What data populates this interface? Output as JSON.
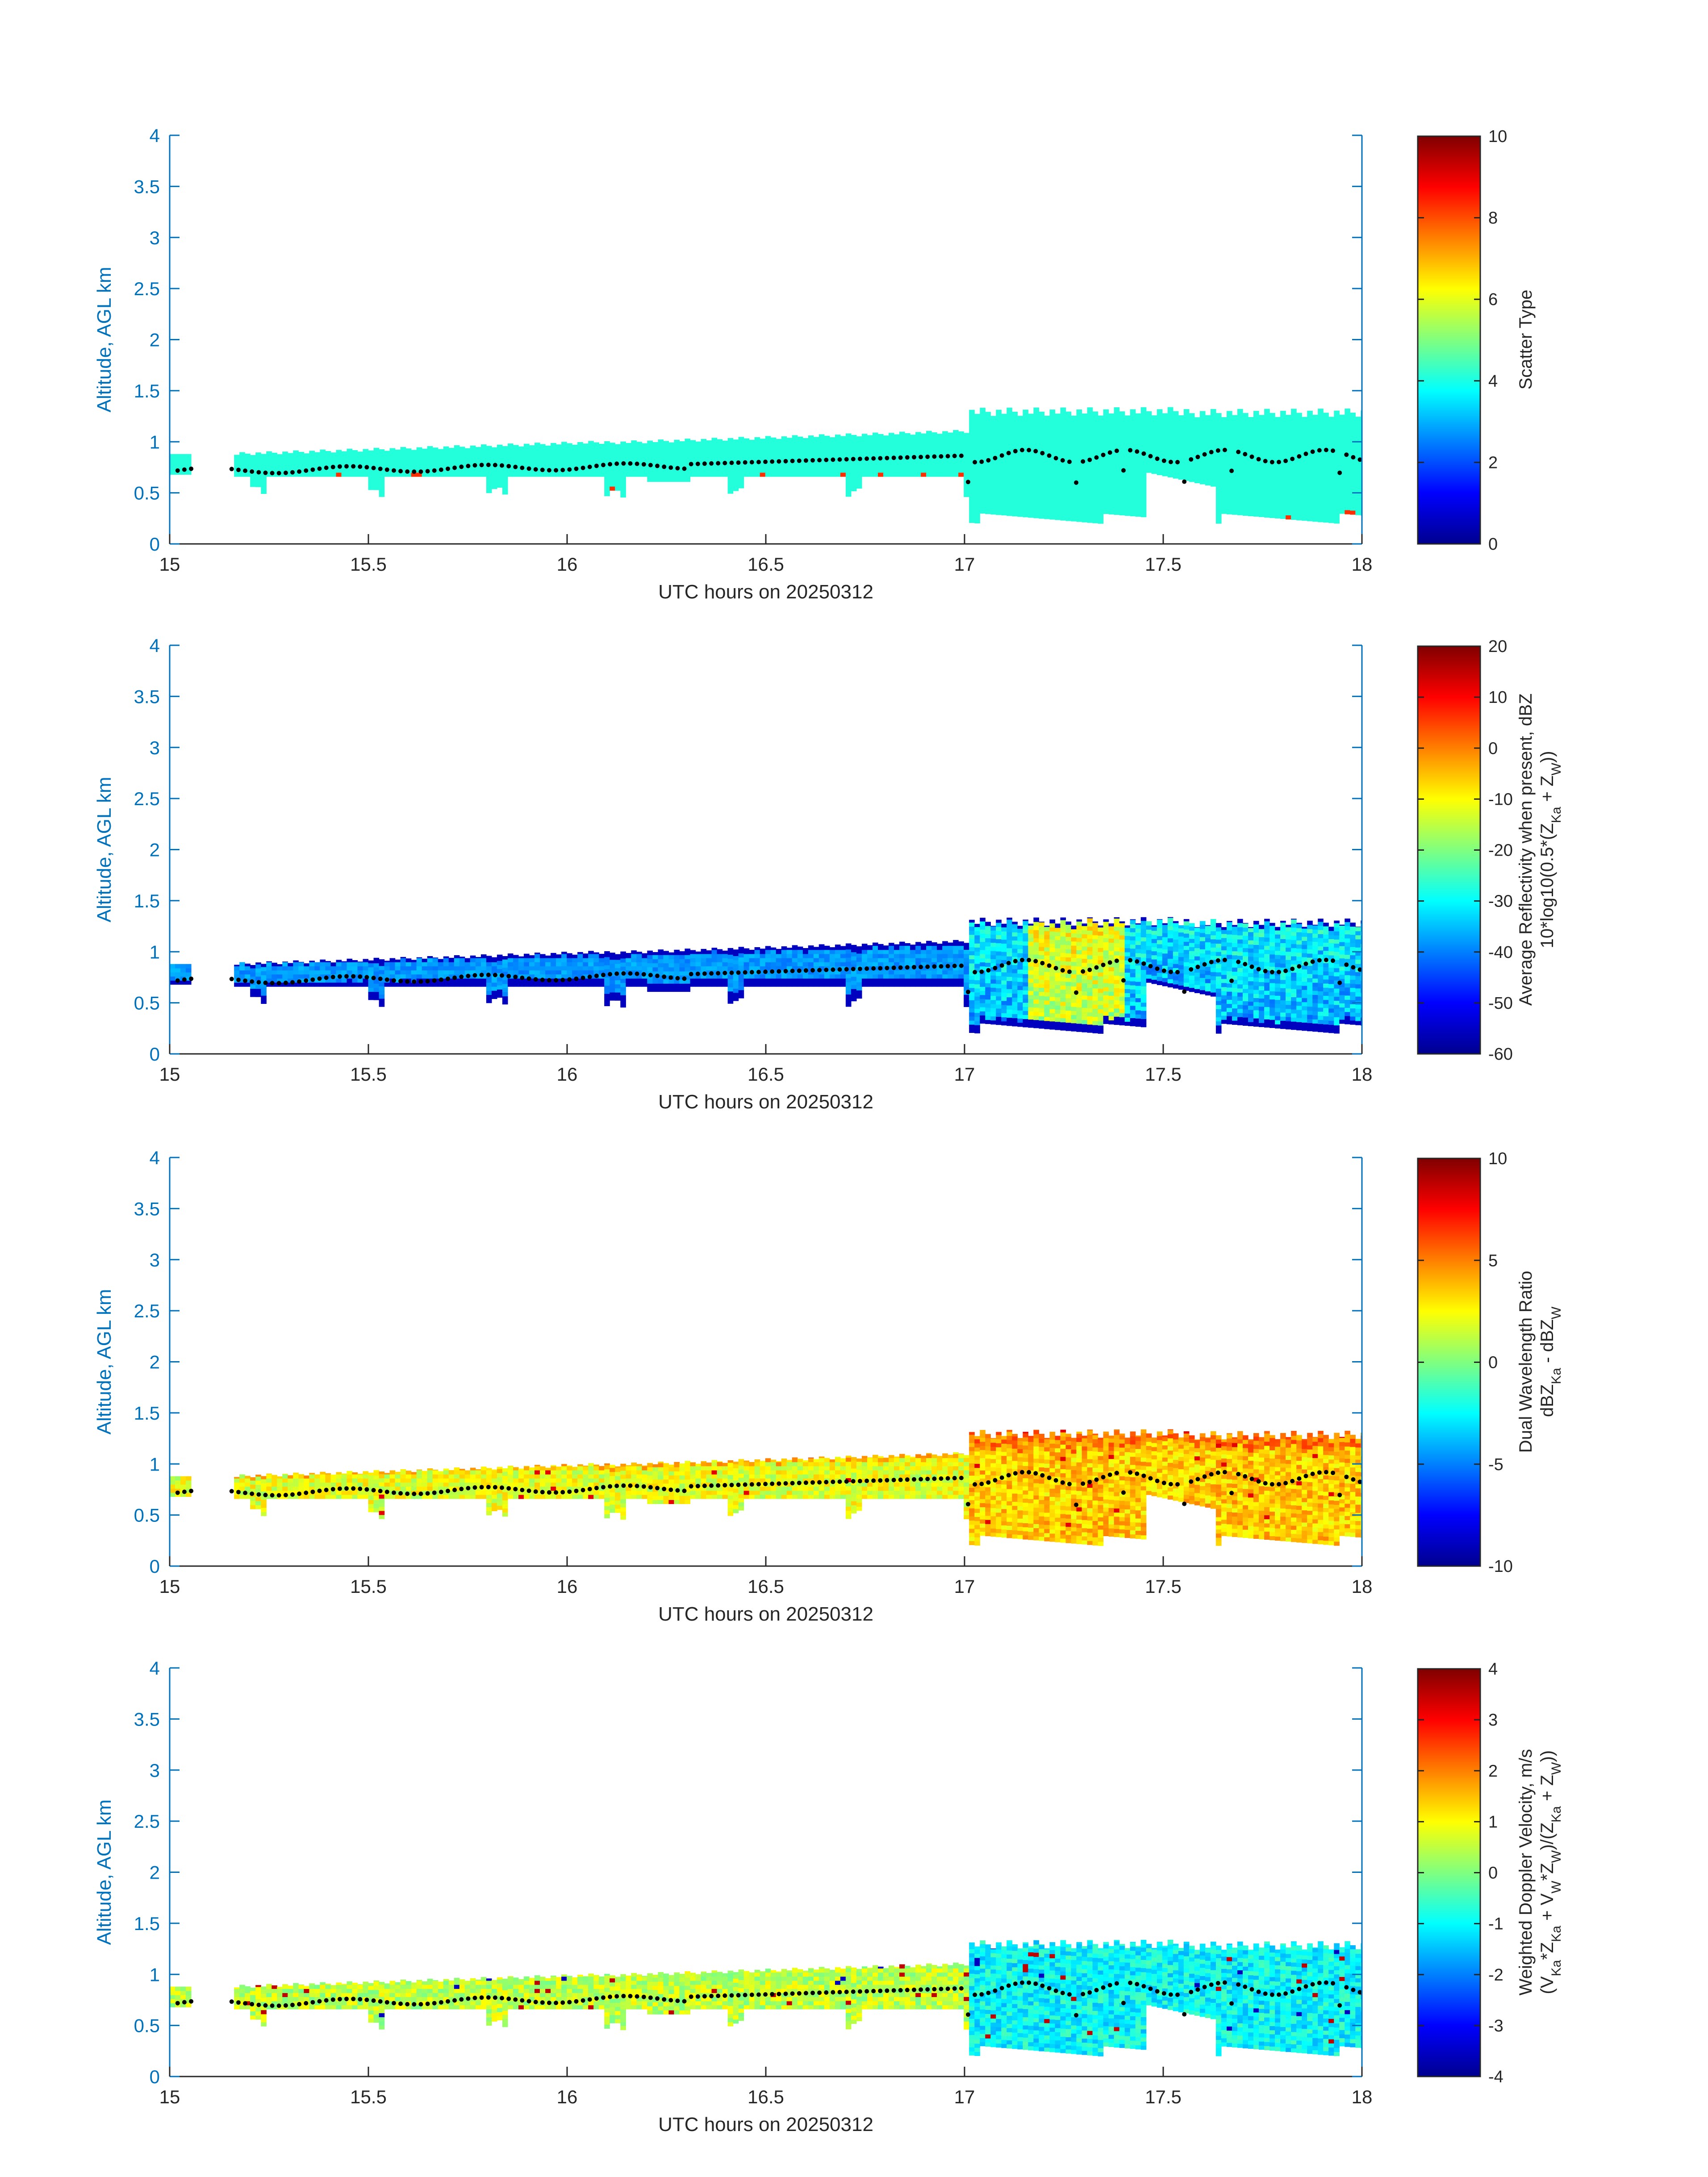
{
  "figure": {
    "date": "20250312"
  },
  "chart_data": [
    {
      "type": "heatmap",
      "id": "scatter-type",
      "xlabel": "UTC hours on 20250312",
      "ylabel": "Altitude, AGL km",
      "xlim": [
        15,
        18
      ],
      "ylim": [
        0,
        4
      ],
      "xticks": [
        "15",
        "15.5",
        "16",
        "16.5",
        "17",
        "17.5",
        "18"
      ],
      "yticks": [
        "0",
        "0.5",
        "1",
        "1.5",
        "2",
        "2.5",
        "3",
        "3.5",
        "4"
      ],
      "colorbar": {
        "label_lines": [
          "Scatter Type"
        ],
        "clim": [
          0,
          10
        ],
        "ticks": [
          "0",
          "2",
          "4",
          "6",
          "8",
          "10"
        ]
      },
      "typical_value": 4.1,
      "outlier_value": 8.3,
      "colormap": "jet",
      "cloud_top_km": [
        0.9,
        1.35
      ],
      "cloud_base_km": [
        0.65,
        0.2
      ],
      "overlay_dots": "black, approx 0.55-0.95 km"
    },
    {
      "type": "heatmap",
      "id": "avg-reflectivity",
      "xlabel": "UTC hours on 20250312",
      "ylabel": "Altitude, AGL km",
      "xlim": [
        15,
        18
      ],
      "ylim": [
        0,
        4
      ],
      "xticks": [
        "15",
        "15.5",
        "16",
        "16.5",
        "17",
        "17.5",
        "18"
      ],
      "yticks": [
        "0",
        "0.5",
        "1",
        "1.5",
        "2",
        "2.5",
        "3",
        "3.5",
        "4"
      ],
      "colorbar": {
        "label_lines": [
          "Average Reflectivity when present, dBZ",
          "10*log10(0.5*(Z",
          "Ka",
          " + Z",
          "W",
          "))"
        ],
        "clim": [
          -60,
          20
        ],
        "ticks": [
          "-60",
          "-50",
          "-40",
          "-30",
          "-20",
          "-10",
          "0",
          "10",
          "20"
        ]
      },
      "edge_value_dbz": -55,
      "core_value_before_17h_dbz": -38,
      "core_value_after_17h_dbz": [
        -20,
        -5
      ],
      "colormap": "jet",
      "overlay_dots": "black, approx 0.55-0.95 km"
    },
    {
      "type": "heatmap",
      "id": "dual-wavelength-ratio",
      "xlabel": "UTC hours on 20250312",
      "ylabel": "Altitude, AGL km",
      "xlim": [
        15,
        18
      ],
      "ylim": [
        0,
        4
      ],
      "xticks": [
        "15",
        "15.5",
        "16",
        "16.5",
        "17",
        "17.5",
        "18"
      ],
      "yticks": [
        "0",
        "0.5",
        "1",
        "1.5",
        "2",
        "2.5",
        "3",
        "3.5",
        "4"
      ],
      "colorbar": {
        "label_lines": [
          "Dual Wavelength Ratio",
          "dBZ",
          "Ka",
          " - dBZ",
          "W"
        ],
        "clim": [
          -10,
          10
        ],
        "ticks": [
          "-10",
          "-5",
          "0",
          "5",
          "10"
        ]
      },
      "typical_value_before_17h": 2.0,
      "typical_value_after_17h": 3.5,
      "colormap": "jet",
      "overlay_dots": "black, approx 0.55-0.95 km"
    },
    {
      "type": "heatmap",
      "id": "weighted-doppler-velocity",
      "xlabel": "UTC hours on 20250312",
      "ylabel": "Altitude, AGL km",
      "xlim": [
        15,
        18
      ],
      "ylim": [
        0,
        4
      ],
      "xticks": [
        "15",
        "15.5",
        "16",
        "16.5",
        "17",
        "17.5",
        "18"
      ],
      "yticks": [
        "0",
        "0.5",
        "1",
        "1.5",
        "2",
        "2.5",
        "3",
        "3.5",
        "4"
      ],
      "colorbar": {
        "label_lines": [
          "Weighted Doppler Velocity, m/s",
          "(V",
          "Ka",
          "*Z",
          "Ka",
          " + V",
          "W",
          "*Z",
          "W",
          ")/(Z",
          "Ka",
          " + Z",
          "W",
          "))"
        ],
        "clim": [
          -4,
          4
        ],
        "ticks": [
          "-4",
          "-3",
          "-2",
          "-1",
          "0",
          "1",
          "2",
          "3",
          "4"
        ]
      },
      "typical_value_before_17h_ms": 0.5,
      "typical_value_after_17h_ms": -1.0,
      "colormap": "jet",
      "overlay_dots": "black, approx 0.55-0.95 km"
    }
  ]
}
